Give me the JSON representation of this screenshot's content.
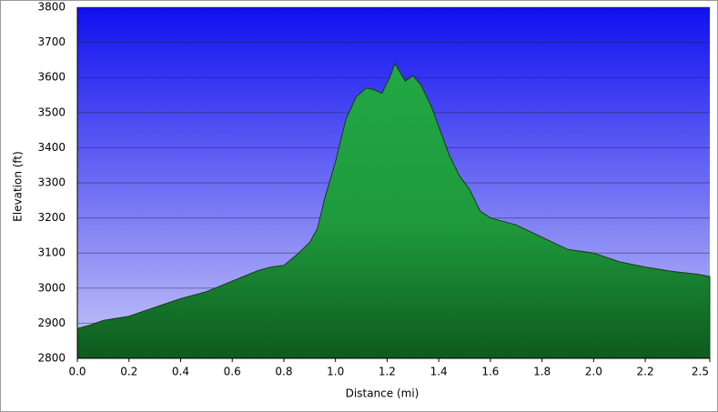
{
  "chart_data": {
    "type": "area",
    "x_label": "Distance   (mi)",
    "y_label": "Elevation (ft)",
    "x": [
      0.0,
      0.05,
      0.1,
      0.2,
      0.3,
      0.4,
      0.5,
      0.6,
      0.7,
      0.75,
      0.8,
      0.85,
      0.9,
      0.93,
      0.96,
      1.0,
      1.04,
      1.08,
      1.12,
      1.15,
      1.18,
      1.21,
      1.23,
      1.25,
      1.27,
      1.3,
      1.33,
      1.37,
      1.4,
      1.44,
      1.48,
      1.52,
      1.56,
      1.6,
      1.7,
      1.8,
      1.9,
      2.0,
      2.1,
      2.2,
      2.3,
      2.4,
      2.45
    ],
    "values": [
      2885,
      2895,
      2908,
      2920,
      2945,
      2970,
      2990,
      3020,
      3050,
      3060,
      3065,
      3095,
      3130,
      3170,
      3260,
      3360,
      3480,
      3545,
      3570,
      3565,
      3555,
      3600,
      3640,
      3615,
      3590,
      3605,
      3580,
      3520,
      3460,
      3380,
      3320,
      3280,
      3220,
      3200,
      3180,
      3145,
      3110,
      3100,
      3075,
      3060,
      3048,
      3040,
      3033
    ],
    "color": "#22a844",
    "xlim": [
      0,
      2.45
    ],
    "ylim": [
      2800,
      3800
    ],
    "xticks": [
      {
        "value": 0,
        "label": "0.0"
      },
      0.2,
      0.4,
      0.6,
      0.8,
      {
        "value": 1,
        "label": "1.0"
      },
      1.2,
      1.4,
      1.6,
      1.8,
      {
        "value": 2,
        "label": "2.0"
      },
      2.2,
      {
        "value": 2.45,
        "label": "2.5"
      }
    ],
    "yticks": [
      2800,
      2900,
      3000,
      3100,
      3200,
      3300,
      3400,
      3500,
      3600,
      3700,
      3800
    ],
    "grid": true
  }
}
